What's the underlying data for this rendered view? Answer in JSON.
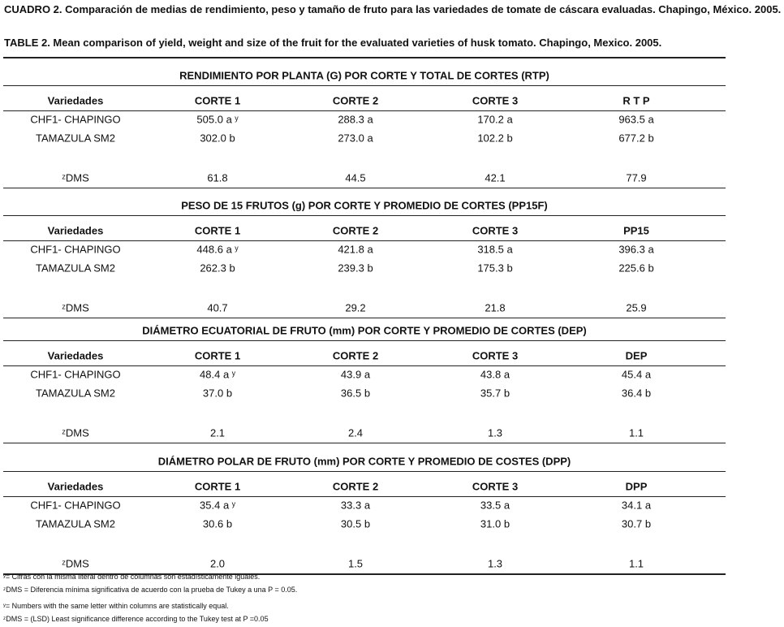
{
  "caption_es": {
    "label": "CUADRO 2.",
    "text": "Comparación de medias de rendimiento, peso y tamaño de fruto para las variedades de tomate de cáscara evaluadas. Chapingo, México. 2005."
  },
  "caption_en": "TABLE 2. Mean comparison of yield, weight and size of the fruit for the evaluated varieties of husk tomato. Chapingo, Mexico. 2005.",
  "sections": [
    {
      "title": "RENDIMIENTO POR PLANTA (G) POR CORTE Y TOTAL DE CORTES (RTP)",
      "header": [
        "Variedades",
        "CORTE 1",
        "CORTE 2",
        "CORTE 3",
        "R T P"
      ],
      "rows": [
        [
          "CHF1- CHAPINGO",
          "505.0 a ʸ",
          "288.3 a",
          "170.2 a",
          "963.5 a"
        ],
        [
          "TAMAZULA SM2",
          "302.0 b",
          "273.0 a",
          "102.2 b",
          "677.2 b"
        ],
        [
          "ᶻDMS",
          "61.8",
          "44.5",
          "42.1",
          "77.9"
        ]
      ]
    },
    {
      "title": "PESO DE 15 FRUTOS (g) POR CORTE Y PROMEDIO DE CORTES (PP15F)",
      "header": [
        "Variedades",
        "CORTE 1",
        "CORTE 2",
        "CORTE 3",
        "PP15"
      ],
      "rows": [
        [
          "CHF1- CHAPINGO",
          "448.6 a ʸ",
          "421.8 a",
          "318.5 a",
          "396.3 a"
        ],
        [
          "TAMAZULA SM2",
          "262.3 b",
          "239.3 b",
          "175.3 b",
          "225.6 b"
        ],
        [
          "ᶻDMS",
          "40.7",
          "29.2",
          "21.8",
          "25.9"
        ]
      ]
    },
    {
      "title": "DIÁMETRO ECUATORIAL DE FRUTO (mm) POR CORTE Y PROMEDIO DE CORTES (DEP)",
      "header": [
        "Variedades",
        "CORTE 1",
        "CORTE 2",
        "CORTE 3",
        "DEP"
      ],
      "rows": [
        [
          "CHF1- CHAPINGO",
          "48.4 a ʸ",
          "43.9 a",
          "43.8 a",
          "45.4 a"
        ],
        [
          "TAMAZULA SM2",
          "37.0 b",
          "36.5 b",
          "35.7 b",
          "36.4 b"
        ],
        [
          "ᶻDMS",
          "2.1",
          "2.4",
          "1.3",
          "1.1"
        ]
      ]
    },
    {
      "title": "DIÁMETRO POLAR DE FRUTO (mm) POR CORTE Y PROMEDIO DE COSTES (DPP)",
      "header": [
        "Variedades",
        "CORTE 1",
        "CORTE 2",
        "CORTE 3",
        "DPP"
      ],
      "rows": [
        [
          "CHF1- CHAPINGO",
          "35.4 a ʸ",
          "33.3 a",
          "33.5 a",
          "34.1 a"
        ],
        [
          "TAMAZULA SM2",
          "30.6 b",
          "30.5 b",
          "31.0 b",
          "30.7 b"
        ],
        [
          "ᶻDMS",
          "2.0",
          "1.5",
          "1.3",
          "1.1"
        ]
      ]
    }
  ],
  "footnotes": [
    "ʸ= Cifras con la misma literal dentro de columnas son estadísticamente iguales.",
    "ᶻDMS = Diferencia mínima significativa de acuerdo con la prueba de Tukey  a una P = 0.05.",
    "ʸ= Numbers with the same letter within columns are statistically equal.",
    "ᶻDMS = (LSD) Least significance difference according to the Tukey test at P =0.05"
  ]
}
